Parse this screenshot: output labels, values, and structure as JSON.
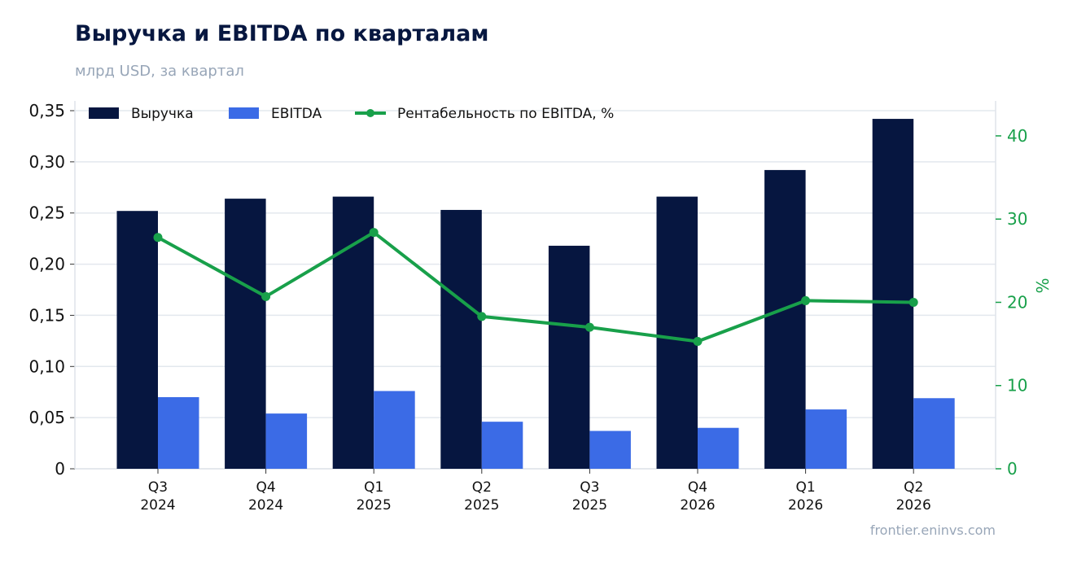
{
  "title": "Выручка и EBITDA по кварталам",
  "subtitle": "млрд USD, за квартал",
  "source": "frontier.eninvs.com",
  "colors": {
    "revenue": "#061640",
    "ebitda": "#3b6be6",
    "margin": "#18a04a",
    "grid": "#e3e8ee",
    "text": "#111111"
  },
  "chart_data": {
    "type": "bar",
    "categories": [
      [
        "Q3",
        "2024"
      ],
      [
        "Q4",
        "2024"
      ],
      [
        "Q1",
        "2025"
      ],
      [
        "Q2",
        "2025"
      ],
      [
        "Q3",
        "2025"
      ],
      [
        "Q4",
        "2026"
      ],
      [
        "Q1",
        "2026"
      ],
      [
        "Q2",
        "2026"
      ]
    ],
    "series": [
      {
        "name": "Выручка",
        "type": "bar",
        "axis": "left",
        "values": [
          0.252,
          0.264,
          0.266,
          0.253,
          0.218,
          0.266,
          0.292,
          0.342
        ]
      },
      {
        "name": "EBITDA",
        "type": "bar",
        "axis": "left",
        "values": [
          0.07,
          0.054,
          0.076,
          0.046,
          0.037,
          0.04,
          0.058,
          0.069
        ]
      },
      {
        "name": "Рентабельность по EBITDA, %",
        "type": "line",
        "axis": "right",
        "values": [
          27.8,
          20.7,
          28.4,
          18.3,
          17.0,
          15.3,
          20.2,
          20.0
        ]
      }
    ],
    "y_left": {
      "ylim": [
        0,
        0.35
      ],
      "ticks": [
        "0",
        "0,05",
        "0,10",
        "0,15",
        "0,20",
        "0,25",
        "0,30",
        "0,35"
      ],
      "tick_values": [
        0,
        0.05,
        0.1,
        0.15,
        0.2,
        0.25,
        0.3,
        0.35
      ]
    },
    "y_right": {
      "label": "%",
      "ylim": [
        0,
        44.2
      ],
      "ticks": [
        "0",
        "10",
        "20",
        "30",
        "40"
      ],
      "tick_values": [
        0,
        10,
        20,
        30,
        40
      ]
    },
    "grid": true,
    "legend_position": "top-left"
  }
}
